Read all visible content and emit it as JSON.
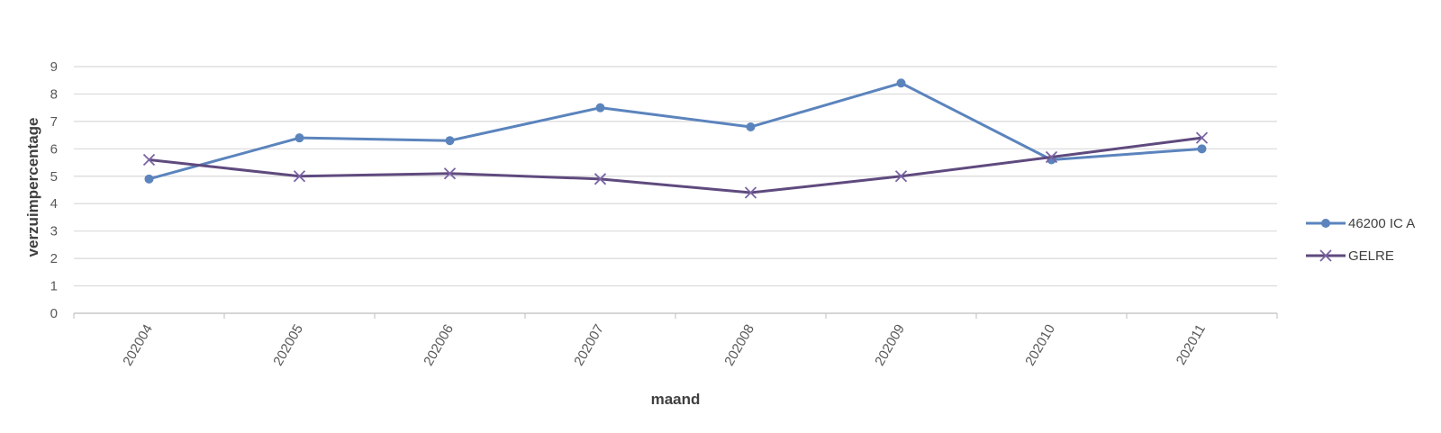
{
  "chart_data": {
    "type": "line",
    "title": "",
    "xlabel": "maand",
    "ylabel": "verzuimpercentage",
    "categories": [
      "202004",
      "202005",
      "202006",
      "202007",
      "202008",
      "202009",
      "202010",
      "202011"
    ],
    "ylim": [
      0,
      9
    ],
    "yticks": [
      0,
      1,
      2,
      3,
      4,
      5,
      6,
      7,
      8,
      9
    ],
    "grid": true,
    "legend_position": "right",
    "series": [
      {
        "name": "46200 IC A",
        "values": [
          4.9,
          6.4,
          6.3,
          7.5,
          6.8,
          8.4,
          5.6,
          6.0
        ],
        "color": "#5b84bd",
        "marker": "circle"
      },
      {
        "name": "GELRE",
        "values": [
          5.6,
          5.0,
          5.1,
          4.9,
          4.4,
          5.0,
          5.7,
          6.4
        ],
        "color": "#5f4a7e",
        "marker": "x"
      }
    ]
  }
}
